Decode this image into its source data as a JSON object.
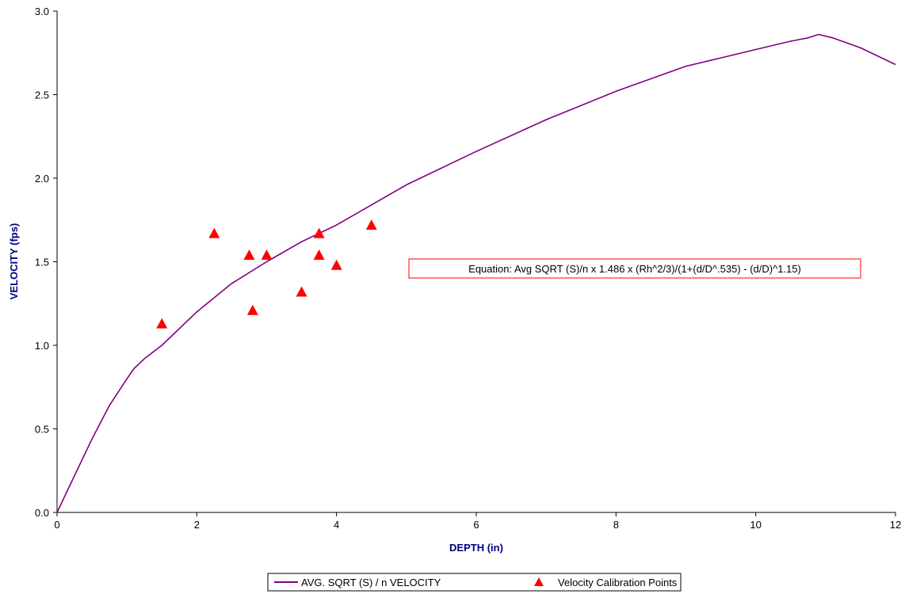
{
  "chart_data": {
    "type": "scatter",
    "xlabel": "DEPTH (in)",
    "ylabel": "VELOCITY (fps)",
    "xlim": [
      0,
      12
    ],
    "ylim": [
      0,
      3.0
    ],
    "x_ticks": [
      "0",
      "2",
      "4",
      "6",
      "8",
      "10",
      "12"
    ],
    "y_ticks": [
      "0.0",
      "0.5",
      "1.0",
      "1.5",
      "2.0",
      "2.5",
      "3.0"
    ],
    "grid": false,
    "legend_position": "bottom",
    "annotation": "Equation: Avg SQRT (S)/n x 1.486 x (Rh^2/3)/(1+(d/D^.535) - (d/D)^1.15)",
    "series": [
      {
        "name": "AVG. SQRT (S) / n VELOCITY",
        "kind": "line",
        "color": "#800080",
        "x": [
          0,
          0.25,
          0.5,
          0.75,
          1.0,
          1.1,
          1.25,
          1.5,
          2.0,
          2.5,
          3.0,
          3.5,
          4.0,
          5.0,
          6.0,
          7.0,
          8.0,
          9.0,
          9.5,
          10.0,
          10.5,
          10.75,
          10.9,
          11.1,
          11.5,
          12.0
        ],
        "y": [
          0,
          0.22,
          0.44,
          0.64,
          0.8,
          0.86,
          0.92,
          1.0,
          1.2,
          1.37,
          1.5,
          1.62,
          1.72,
          1.96,
          2.16,
          2.35,
          2.52,
          2.67,
          2.72,
          2.77,
          2.82,
          2.84,
          2.86,
          2.84,
          2.78,
          2.68
        ]
      },
      {
        "name": "Velocity Calibration Points",
        "kind": "scatter",
        "marker": "triangle",
        "color": "#ff0000",
        "x": [
          1.5,
          2.25,
          2.75,
          2.8,
          3.0,
          3.5,
          3.75,
          3.75,
          4.0,
          4.5
        ],
        "y": [
          1.13,
          1.67,
          1.54,
          1.21,
          1.54,
          1.32,
          1.67,
          1.54,
          1.48,
          1.72
        ]
      }
    ]
  }
}
